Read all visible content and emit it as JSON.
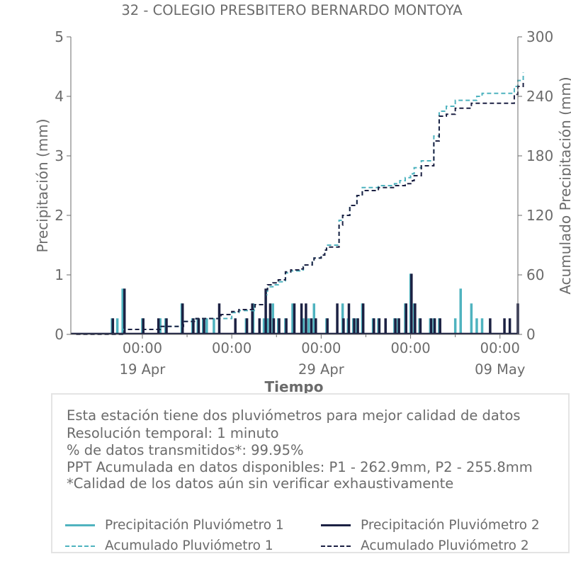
{
  "colors": {
    "p1": "#4fb3bf",
    "p2": "#1c2143",
    "text": "#6b6b6b",
    "box_border": "#e4e4e4"
  },
  "chart_data": {
    "type": "line",
    "title": "32 - COLEGIO PRESBITERO BERNARDO MONTOYA",
    "xlabel": "Tiempo",
    "ylabel_left": "Precipitación (mm)",
    "ylabel_right": "Acumulado Precipitación (mm)",
    "xlim": [
      -4.0,
      21.0
    ],
    "ylim_left": [
      0,
      5
    ],
    "ylim_right": [
      0,
      300
    ],
    "yticks_left": [
      "0",
      "1",
      "2",
      "3",
      "4",
      "5"
    ],
    "yticks_right": [
      "0",
      "60",
      "120",
      "180",
      "240",
      "300"
    ],
    "xticks": [
      {
        "x": 0,
        "time": "00:00",
        "date": "19 Apr"
      },
      {
        "x": 5,
        "time": "00:00",
        "date": ""
      },
      {
        "x": 10,
        "time": "00:00",
        "date": "29 Apr"
      },
      {
        "x": 15,
        "time": "00:00",
        "date": ""
      },
      {
        "x": 20,
        "time": "00:00",
        "date": "09 May"
      }
    ],
    "x_unit_note": "",
    "series": [
      {
        "name": "Precipitación Pluviómetro 1",
        "axis": "left",
        "style": "bar",
        "x": [
          -1.7,
          -1.4,
          -1.1,
          0.0,
          1.0,
          1.3,
          2.2,
          2.8,
          3.1,
          3.4,
          3.6,
          4.0,
          5.8,
          6.2,
          6.8,
          7.0,
          7.3,
          7.6,
          8.0,
          8.4,
          9.0,
          9.3,
          9.6,
          10.3,
          11.2,
          11.5,
          11.8,
          12.0,
          12.3,
          12.9,
          13.2,
          14.1,
          14.3,
          14.7,
          15.0,
          15.2,
          15.5,
          16.1,
          16.3,
          16.6,
          17.5,
          17.8,
          18.4,
          18.7,
          19.0
        ],
        "values": [
          0.27,
          0.27,
          0.77,
          0.27,
          0.27,
          0.27,
          0.52,
          0.27,
          0.27,
          0.27,
          0.27,
          0.27,
          0.27,
          0.52,
          0.27,
          0.27,
          0.52,
          0.27,
          0.27,
          0.52,
          0.27,
          0.27,
          0.52,
          0.27,
          0.52,
          0.27,
          0.27,
          0.27,
          0.52,
          0.27,
          0.27,
          0.27,
          0.27,
          0.52,
          1.02,
          0.52,
          0.27,
          0.27,
          0.27,
          0.27,
          0.27,
          0.77,
          0.52,
          0.27,
          0.27
        ]
      },
      {
        "name": "Precipitación Pluviómetro 2",
        "axis": "left",
        "style": "bar",
        "x": [
          -1.65,
          -1.0,
          0.05,
          0.9,
          1.35,
          2.25,
          2.85,
          3.15,
          3.45,
          4.3,
          5.2,
          5.85,
          6.15,
          6.55,
          6.9,
          7.15,
          7.35,
          7.65,
          8.05,
          8.5,
          8.9,
          9.15,
          9.45,
          9.7,
          10.35,
          10.9,
          11.25,
          11.55,
          11.85,
          12.05,
          12.35,
          12.95,
          13.25,
          13.6,
          14.15,
          14.35,
          14.75,
          15.05,
          15.25,
          15.55,
          16.15,
          16.35,
          16.65,
          19.45,
          20.25,
          20.55,
          21.0
        ],
        "values": [
          0.27,
          0.77,
          0.27,
          0.27,
          0.27,
          0.52,
          0.27,
          0.27,
          0.27,
          0.52,
          0.27,
          0.27,
          0.52,
          0.27,
          0.77,
          0.52,
          0.27,
          0.27,
          0.27,
          0.52,
          0.52,
          0.52,
          0.27,
          0.27,
          0.27,
          0.52,
          0.27,
          0.52,
          0.27,
          0.27,
          0.52,
          0.27,
          0.27,
          0.27,
          0.27,
          0.27,
          0.52,
          1.02,
          0.52,
          0.27,
          0.27,
          0.27,
          0.27,
          0.27,
          0.27,
          0.27,
          0.52
        ]
      },
      {
        "name": "Acumulado Pluviómetro 1",
        "axis": "right",
        "style": "dashed-line",
        "x": [
          -3.7,
          -1.8,
          -1.1,
          0.0,
          1.0,
          2.0,
          2.3,
          3.0,
          4.0,
          4.4,
          5.0,
          5.4,
          6.0,
          6.3,
          6.9,
          7.0,
          7.3,
          7.6,
          8.0,
          8.3,
          8.8,
          9.0,
          9.1,
          9.5,
          9.6,
          10.0,
          10.2,
          10.3,
          11.0,
          11.2,
          11.6,
          12.0,
          12.3,
          13.0,
          13.2,
          14.0,
          14.1,
          14.4,
          14.7,
          15.0,
          15.1,
          15.2,
          15.6,
          16.0,
          16.3,
          16.6,
          17.0,
          17.5,
          17.9,
          18.4,
          18.7,
          19.0,
          20.0,
          20.4,
          20.8,
          21.0,
          21.3
        ],
        "values": [
          0,
          0,
          5,
          5,
          8,
          8,
          13,
          16,
          16,
          16,
          22,
          24,
          24,
          30,
          40,
          48,
          50,
          53,
          62,
          64,
          65,
          68,
          70,
          74,
          77,
          80,
          85,
          90,
          115,
          120,
          130,
          140,
          148,
          148,
          150,
          150,
          152,
          155,
          158,
          160,
          162,
          168,
          175,
          175,
          200,
          225,
          230,
          236,
          236,
          236,
          240,
          243,
          243,
          243,
          250,
          256,
          264
        ]
      },
      {
        "name": "Acumulado Pluviómetro 2",
        "axis": "right",
        "style": "dashed-line",
        "x": [
          -3.7,
          -1.8,
          -1.0,
          0.0,
          1.0,
          2.0,
          2.3,
          3.0,
          4.0,
          4.4,
          5.0,
          5.4,
          6.0,
          6.3,
          6.9,
          7.0,
          7.3,
          7.6,
          8.0,
          8.3,
          8.8,
          9.0,
          9.1,
          9.5,
          9.6,
          10.0,
          10.2,
          10.3,
          11.0,
          11.2,
          11.6,
          12.0,
          12.3,
          13.0,
          13.2,
          14.0,
          14.1,
          14.4,
          14.7,
          15.0,
          15.1,
          15.2,
          15.6,
          16.0,
          16.3,
          16.6,
          17.0,
          17.5,
          17.9,
          18.4,
          18.7,
          19.0,
          20.0,
          20.4,
          20.8,
          21.0,
          21.3
        ],
        "values": [
          0,
          0,
          5,
          5,
          8,
          8,
          13,
          16,
          16,
          20,
          23,
          25,
          25,
          30,
          45,
          50,
          52,
          55,
          63,
          65,
          66,
          68,
          70,
          74,
          77,
          80,
          85,
          88,
          110,
          120,
          130,
          140,
          145,
          145,
          148,
          148,
          150,
          150,
          152,
          152,
          155,
          160,
          170,
          170,
          195,
          220,
          222,
          228,
          228,
          233,
          233,
          233,
          233,
          233,
          242,
          250,
          256
        ]
      }
    ]
  },
  "info": {
    "line1": "Esta estación tiene dos pluviómetros para mejor calidad de datos",
    "line2": "Resolución temporal: 1 minuto",
    "line3": "% de datos transmitidos*: 99.95%",
    "line4": "PPT Acumulada en datos disponibles: P1 - 262.9mm, P2 - 255.8mm",
    "line5": "*Calidad de los datos aún sin verificar exhaustivamente"
  },
  "legend": {
    "p1_precip": "Precipitación Pluviómetro 1",
    "p2_precip": "Precipitación Pluviómetro 2",
    "p1_accum": "Acumulado Pluviómetro 1",
    "p2_accum": "Acumulado Pluviómetro 2"
  }
}
